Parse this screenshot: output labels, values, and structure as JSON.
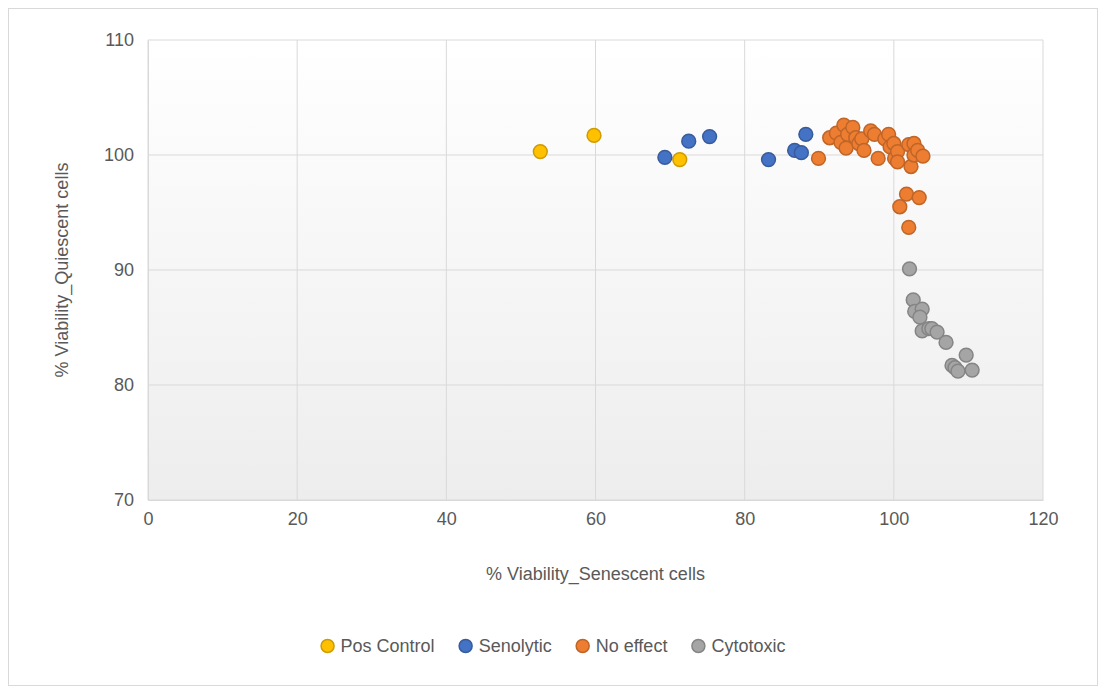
{
  "chart_data": {
    "type": "scatter",
    "x_label": "% Viability_Senescent cells",
    "y_label": "% Viability_Quiescent cells",
    "xlim": [
      0,
      120
    ],
    "xticks": [
      0,
      20,
      40,
      60,
      80,
      100,
      120
    ],
    "ylim": [
      70,
      110
    ],
    "yticks": [
      70,
      80,
      90,
      100,
      110
    ],
    "grid": true,
    "legend": "bottom",
    "marker": "circle",
    "series": [
      {
        "name": "Pos Control",
        "color": "#FFC000",
        "x": [
          52.6,
          59.8,
          71.3
        ],
        "values": [
          100.3,
          101.7,
          99.6
        ]
      },
      {
        "name": "Senolytic",
        "color": "#4472C4",
        "x": [
          69.3,
          72.5,
          75.3,
          83.2,
          86.7,
          87.6,
          88.2
        ],
        "values": [
          99.8,
          101.2,
          101.6,
          99.6,
          100.4,
          100.2,
          101.8
        ]
      },
      {
        "name": "No effect",
        "color": "#ED7D31",
        "x": [
          89.9,
          91.4,
          92.3,
          92.9,
          93.3,
          93.6,
          93.8,
          94.5,
          94.9,
          95.3,
          95.7,
          96.0,
          96.9,
          97.4,
          97.9,
          98.8,
          99.3,
          99.5,
          100.0,
          100.1,
          100.5,
          100.5,
          100.8,
          101.7,
          102.0,
          102.3,
          102.0,
          102.7,
          102.7,
          103.2,
          103.4,
          103.9
        ],
        "values": [
          99.7,
          101.5,
          101.9,
          101.1,
          102.6,
          100.6,
          101.8,
          102.4,
          101.5,
          101.0,
          101.4,
          100.4,
          102.1,
          101.8,
          99.7,
          101.4,
          101.8,
          100.7,
          101.0,
          99.7,
          100.3,
          99.4,
          95.5,
          96.6,
          100.9,
          99.0,
          93.7,
          101.0,
          100.0,
          100.4,
          96.3,
          99.9
        ]
      },
      {
        "name": "Cytotoxic",
        "color": "#A5A5A5",
        "x": [
          102.1,
          102.6,
          102.8,
          103.8,
          103.5,
          103.8,
          104.7,
          105.1,
          105.8,
          107.0,
          107.8,
          108.2,
          108.6,
          109.7,
          110.5
        ],
        "values": [
          90.1,
          87.4,
          86.4,
          86.6,
          85.9,
          84.7,
          84.9,
          84.9,
          84.6,
          83.7,
          81.7,
          81.5,
          81.2,
          82.6,
          81.3
        ]
      }
    ]
  }
}
